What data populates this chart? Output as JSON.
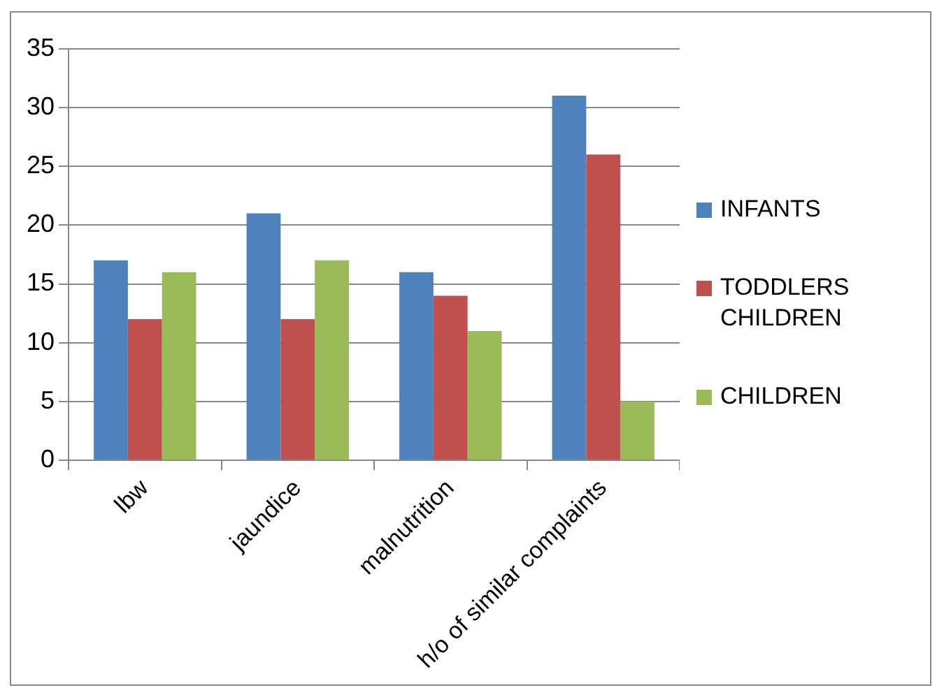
{
  "chart_data": {
    "type": "bar",
    "categories": [
      "lbw",
      "jaundice",
      "malnutrition",
      "h/o of similar complaints"
    ],
    "series": [
      {
        "name": "INFANTS",
        "color": "#4f81bd",
        "values": [
          17,
          21,
          16,
          31
        ]
      },
      {
        "name": "TODDLERS CHILDREN",
        "color": "#c0504d",
        "values": [
          12,
          12,
          14,
          26
        ]
      },
      {
        "name": "CHILDREN",
        "color": "#9bbb59",
        "values": [
          16,
          17,
          11,
          5
        ]
      }
    ],
    "ylim": [
      0,
      35
    ],
    "yticks": [
      0,
      5,
      10,
      15,
      20,
      25,
      30,
      35
    ],
    "grid": "y",
    "legend": "right"
  }
}
